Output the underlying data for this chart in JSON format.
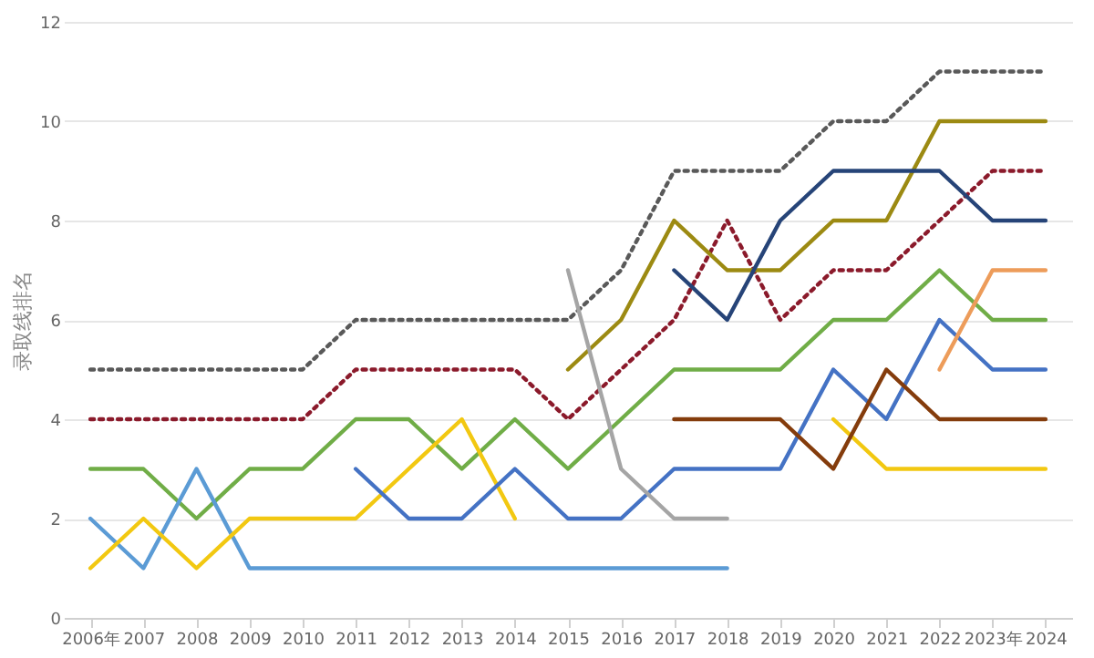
{
  "chart_data": {
    "type": "line",
    "ylabel": "录取线排名",
    "categories": [
      "2006年",
      "2007",
      "2008",
      "2009",
      "2010",
      "2011",
      "2012",
      "2013",
      "2014",
      "2015",
      "2016",
      "2017",
      "2018",
      "2019",
      "2020",
      "2021",
      "2022",
      "2023年",
      "2024"
    ],
    "ylim": [
      0,
      12
    ],
    "yticks": [
      0,
      2,
      4,
      6,
      8,
      10,
      12
    ],
    "grid": "y",
    "legend": false,
    "marker": "none",
    "series": [
      {
        "color": "#595959",
        "line_style": "dotted",
        "values": [
          5,
          5,
          5,
          5,
          5,
          6,
          6,
          6,
          6,
          6,
          7,
          9,
          9,
          9,
          10,
          10,
          11,
          11,
          11
        ]
      },
      {
        "color": "#8b1a2b",
        "line_style": "dotted",
        "values": [
          4,
          4,
          4,
          4,
          4,
          5,
          5,
          5,
          5,
          4,
          5,
          6,
          8,
          6,
          7,
          7,
          8,
          9,
          9
        ]
      },
      {
        "color": "#70ad47",
        "line_style": "solid",
        "values": [
          3,
          3,
          2,
          3,
          3,
          4,
          4,
          3,
          4,
          3,
          4,
          5,
          5,
          5,
          6,
          6,
          7,
          6,
          6
        ]
      },
      {
        "color": "#5b9bd5",
        "line_style": "solid",
        "values": [
          2,
          1,
          3,
          1,
          1,
          1,
          1,
          1,
          1,
          1,
          1,
          1,
          1,
          null,
          null,
          null,
          null,
          null,
          null
        ]
      },
      {
        "color": "#f2c811",
        "line_style": "solid",
        "values": [
          1,
          2,
          1,
          2,
          2,
          2,
          3,
          4,
          2,
          null,
          null,
          null,
          null,
          null,
          4,
          3,
          3,
          3,
          3
        ]
      },
      {
        "color": "#4472c4",
        "line_style": "solid",
        "values": [
          null,
          null,
          null,
          null,
          null,
          3,
          2,
          2,
          3,
          2,
          2,
          3,
          3,
          3,
          5,
          4,
          6,
          5,
          5
        ]
      },
      {
        "color": "#9c8a12",
        "line_style": "solid",
        "values": [
          null,
          null,
          null,
          null,
          null,
          null,
          null,
          null,
          null,
          5,
          6,
          8,
          7,
          7,
          8,
          8,
          10,
          10,
          10
        ]
      },
      {
        "color": "#264478",
        "line_style": "solid",
        "values": [
          null,
          null,
          null,
          null,
          null,
          null,
          null,
          null,
          null,
          null,
          null,
          7,
          6,
          8,
          9,
          9,
          9,
          8,
          8
        ]
      },
      {
        "color": "#a5a5a5",
        "line_style": "solid",
        "values": [
          null,
          null,
          null,
          null,
          null,
          null,
          null,
          null,
          null,
          7,
          3,
          2,
          2,
          null,
          null,
          null,
          null,
          null,
          null
        ]
      },
      {
        "color": "#843c0c",
        "line_style": "solid",
        "values": [
          null,
          null,
          null,
          null,
          null,
          null,
          null,
          null,
          null,
          null,
          null,
          4,
          4,
          4,
          3,
          5,
          4,
          4,
          4
        ]
      },
      {
        "color": "#ed9c5a",
        "line_style": "solid",
        "values": [
          null,
          null,
          null,
          null,
          null,
          null,
          null,
          null,
          null,
          null,
          null,
          null,
          null,
          null,
          null,
          null,
          5,
          7,
          7
        ]
      }
    ]
  }
}
